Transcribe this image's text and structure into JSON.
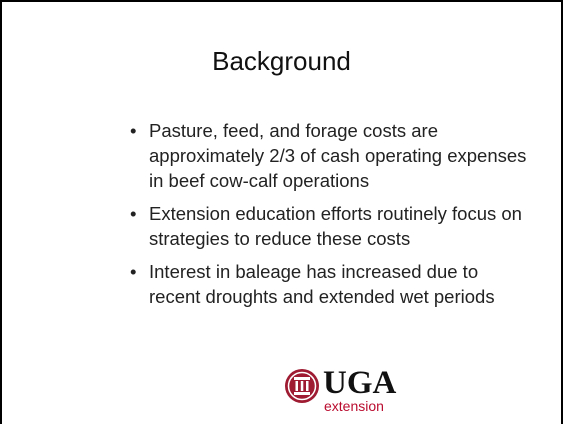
{
  "title": "Background",
  "bullets": [
    "Pasture, feed, and forage costs are approximately 2/3 of cash operating expenses in beef cow-calf operations",
    "Extension education efforts routinely focus on strategies to reduce these costs",
    "Interest in baleage has increased due to recent droughts and extended wet periods"
  ],
  "logo": {
    "name": "UGA",
    "subtitle": "extension"
  }
}
